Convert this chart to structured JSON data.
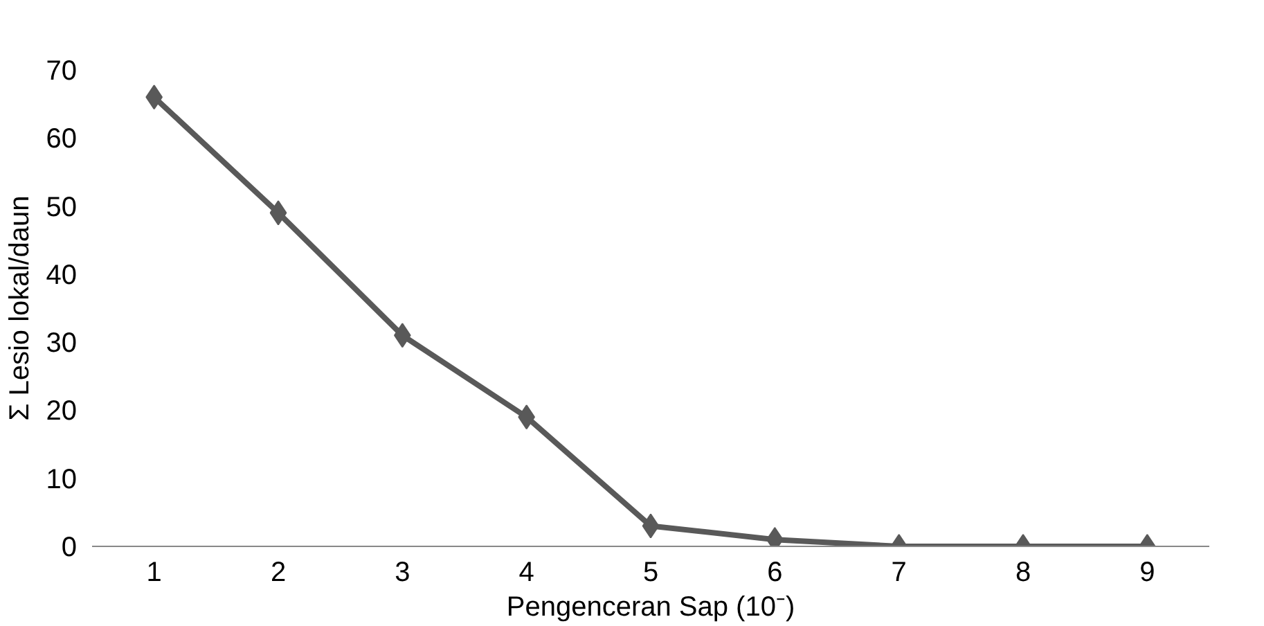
{
  "chart_data": {
    "type": "line",
    "xlabel": "Pengenceran Sap (10⁻)",
    "ylabel": "Σ Lesio lokal/daun",
    "categories": [
      "1",
      "2",
      "3",
      "4",
      "5",
      "6",
      "7",
      "8",
      "9"
    ],
    "series": [
      {
        "color": "#595959",
        "values": [
          66,
          49,
          31,
          19,
          3,
          1,
          0,
          0,
          0
        ]
      }
    ],
    "ylim": [
      0,
      70
    ],
    "yticks": [
      0,
      10,
      20,
      30,
      40,
      50,
      60,
      70
    ],
    "grid": false,
    "marker": "diamond",
    "line_style": "solid"
  }
}
